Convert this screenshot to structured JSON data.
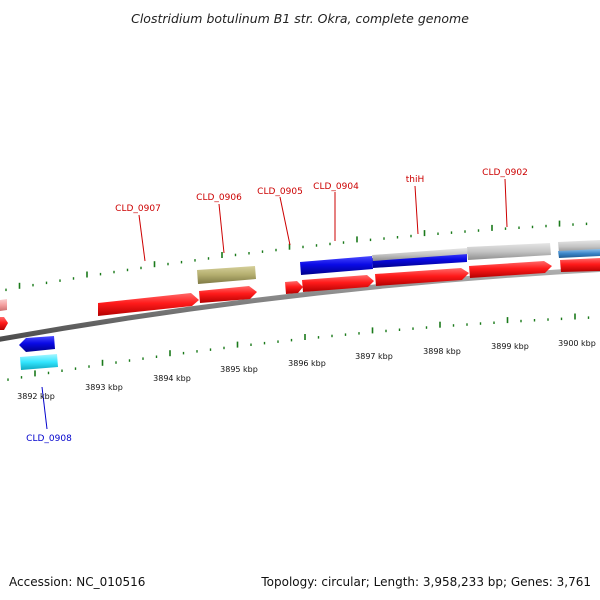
{
  "title": "Clostridium botulinum B1 str. Okra, complete genome",
  "footer": {
    "accession": "Accession: NC_010516",
    "summary": "Topology: circular; Length: 3,958,233 bp; Genes: 3,761"
  },
  "colors": {
    "forward_cds": "#ff1a1a",
    "reverse_cds": "#0a0ae6",
    "grey_gene": "#c4c4c4",
    "olive_gene": "#b3ad6e",
    "cyan_gene": "#33e6ff",
    "pink_gene": "#f4a0a0",
    "steel_gene": "#3b86c9",
    "tick": "#1a7a1a",
    "backbone": "#7d7d7d",
    "label_forward": "#cc0000",
    "label_reverse": "#0000cc"
  },
  "scale_labels": [
    "3892 kbp",
    "3893 kbp",
    "3894 kbp",
    "3895 kbp",
    "3896 kbp",
    "3897 kbp",
    "3898 kbp",
    "3899 kbp",
    "3900 kbp"
  ],
  "gene_labels": [
    {
      "name": "CLD_0907",
      "strand": "forward"
    },
    {
      "name": "CLD_0906",
      "strand": "forward"
    },
    {
      "name": "CLD_0905",
      "strand": "forward"
    },
    {
      "name": "CLD_0904",
      "strand": "forward"
    },
    {
      "name": "thiH",
      "strand": "forward"
    },
    {
      "name": "CLD_0902",
      "strand": "forward"
    },
    {
      "name": "CLD_0908",
      "strand": "reverse"
    }
  ]
}
